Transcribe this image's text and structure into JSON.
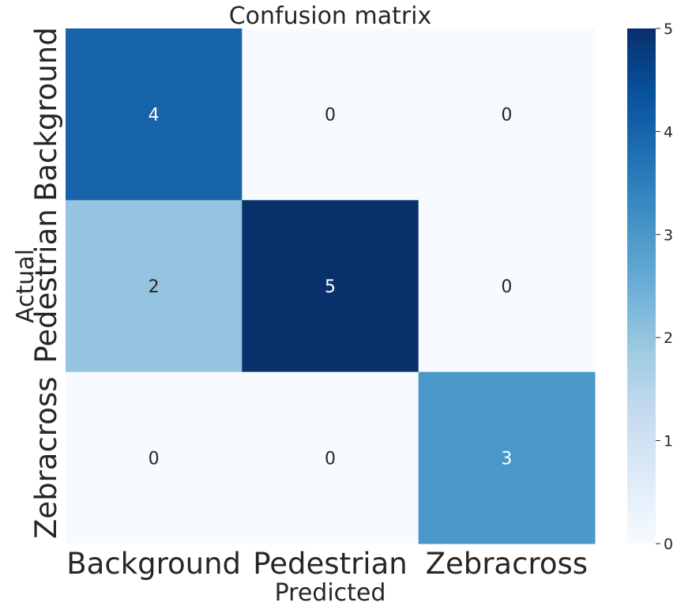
{
  "chart_data": {
    "type": "heatmap",
    "title": "Confusion matrix",
    "xlabel": "Predicted",
    "ylabel": "Actual",
    "x_categories": [
      "Background",
      "Pedestrian",
      "Zebracross"
    ],
    "y_categories": [
      "Background",
      "Pedestrian",
      "Zebracross"
    ],
    "values": [
      [
        4,
        0,
        0
      ],
      [
        2,
        5,
        0
      ],
      [
        0,
        0,
        3
      ]
    ],
    "colormap": "Blues",
    "vmin": 0,
    "vmax": 5,
    "colorbar_ticks": [
      0,
      1,
      2,
      3,
      4,
      5
    ],
    "annotations": true,
    "grid": false,
    "colorbar_position": "right"
  }
}
